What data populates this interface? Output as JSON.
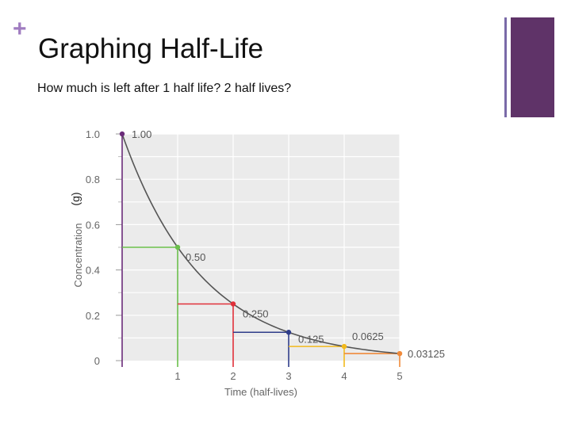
{
  "slide": {
    "plus": "+",
    "title": "Graphing Half-Life",
    "subtitle": "How much is left after 1 half life? 2 half lives?",
    "unit_label": "(g)"
  },
  "colors": {
    "accent_plus": "#a07cc0",
    "deco_line": "#7a6aa8",
    "deco_block": "#5f3368",
    "plot_bg": "#ebebeb",
    "curve": "#555555"
  },
  "chart_data": {
    "type": "line",
    "xlabel": "Time (half-lives)",
    "ylabel": "Concentration",
    "xlim": [
      0,
      5
    ],
    "ylim": [
      0,
      1.0
    ],
    "x_ticks": [
      "1",
      "2",
      "3",
      "4",
      "5"
    ],
    "y_ticks": [
      "0",
      "0.2",
      "0.4",
      "0.6",
      "0.8",
      "1.0"
    ],
    "grid": true,
    "series": [
      {
        "x": [
          0,
          1,
          2,
          3,
          4,
          5
        ],
        "values": [
          1.0,
          0.5,
          0.25,
          0.125,
          0.0625,
          0.03125
        ]
      }
    ],
    "points": [
      {
        "x": 0,
        "y": 1.0,
        "label": "1.00",
        "color": "#6b2c7a"
      },
      {
        "x": 1,
        "y": 0.5,
        "label": "0.50",
        "color": "#6abf4b"
      },
      {
        "x": 2,
        "y": 0.25,
        "label": "0.250",
        "color": "#e0303a"
      },
      {
        "x": 3,
        "y": 0.125,
        "label": "0.125",
        "color": "#2f3d8a"
      },
      {
        "x": 4,
        "y": 0.0625,
        "label": "0.0625",
        "color": "#f2b91c"
      },
      {
        "x": 5,
        "y": 0.03125,
        "label": "0.03125",
        "color": "#f08a3a"
      }
    ]
  }
}
